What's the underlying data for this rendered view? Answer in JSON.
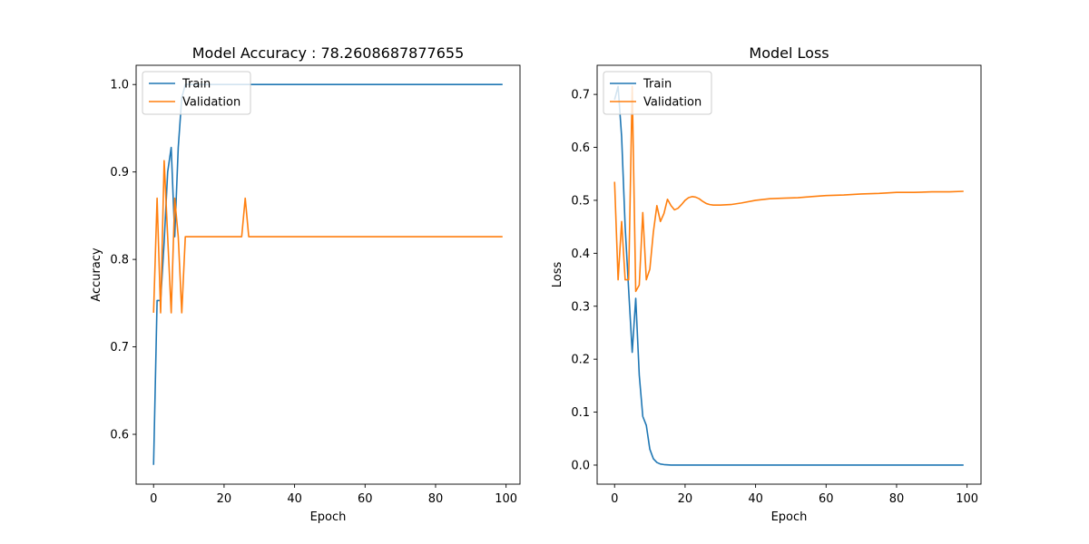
{
  "chart_data": [
    {
      "type": "line",
      "title": "Model Accuracy : 78.2608687877655",
      "xlabel": "Epoch",
      "ylabel": "Accuracy",
      "xlim": [
        -4.95,
        103.95
      ],
      "ylim": [
        0.543,
        1.022
      ],
      "xticks": [
        0,
        20,
        40,
        60,
        80,
        100
      ],
      "yticks": [
        0.6,
        0.7,
        0.8,
        0.9,
        1.0
      ],
      "ytick_labels": [
        "0.6",
        "0.7",
        "0.8",
        "0.9",
        "1.0"
      ],
      "grid": false,
      "legend": "top-left",
      "series": [
        {
          "name": "Train",
          "color": "#1f77b4",
          "points": [
            [
              0,
              0.565
            ],
            [
              1,
              0.753
            ],
            [
              2,
              0.753
            ],
            [
              3,
              0.82
            ],
            [
              4,
              0.9
            ],
            [
              5,
              0.928
            ],
            [
              6,
              0.826
            ],
            [
              7,
              0.928
            ],
            [
              8,
              0.985
            ],
            [
              9,
              1.0
            ],
            [
              99,
              1.0
            ]
          ]
        },
        {
          "name": "Validation",
          "color": "#ff7f0e",
          "points": [
            [
              0,
              0.739
            ],
            [
              1,
              0.87
            ],
            [
              2,
              0.739
            ],
            [
              3,
              0.913
            ],
            [
              4,
              0.826
            ],
            [
              5,
              0.739
            ],
            [
              6,
              0.87
            ],
            [
              7,
              0.826
            ],
            [
              8,
              0.739
            ],
            [
              9,
              0.826
            ],
            [
              25,
              0.826
            ],
            [
              26,
              0.87
            ],
            [
              27,
              0.826
            ],
            [
              99,
              0.826
            ]
          ]
        }
      ]
    },
    {
      "type": "line",
      "title": "Model Loss",
      "xlabel": "Epoch",
      "ylabel": "Loss",
      "xlim": [
        -4.95,
        103.95
      ],
      "ylim": [
        -0.036,
        0.755
      ],
      "xticks": [
        0,
        20,
        40,
        60,
        80,
        100
      ],
      "yticks": [
        0.0,
        0.1,
        0.2,
        0.3,
        0.4,
        0.5,
        0.6,
        0.7
      ],
      "ytick_labels": [
        "0.0",
        "0.1",
        "0.2",
        "0.3",
        "0.4",
        "0.5",
        "0.6",
        "0.7"
      ],
      "grid": false,
      "legend": "top-left",
      "series": [
        {
          "name": "Train",
          "color": "#1f77b4",
          "points": [
            [
              0,
              0.69
            ],
            [
              1,
              0.715
            ],
            [
              2,
              0.62
            ],
            [
              3,
              0.45
            ],
            [
              4,
              0.33
            ],
            [
              5,
              0.213
            ],
            [
              6,
              0.315
            ],
            [
              7,
              0.17
            ],
            [
              8,
              0.092
            ],
            [
              9,
              0.075
            ],
            [
              10,
              0.03
            ],
            [
              11,
              0.012
            ],
            [
              12,
              0.005
            ],
            [
              13,
              0.002
            ],
            [
              14,
              0.001
            ],
            [
              16,
              0.0
            ],
            [
              99,
              0.0
            ]
          ]
        },
        {
          "name": "Validation",
          "color": "#ff7f0e",
          "points": [
            [
              0,
              0.535
            ],
            [
              1,
              0.35
            ],
            [
              2,
              0.46
            ],
            [
              3,
              0.35
            ],
            [
              4,
              0.35
            ],
            [
              5,
              0.715
            ],
            [
              6,
              0.328
            ],
            [
              7,
              0.34
            ],
            [
              8,
              0.477
            ],
            [
              9,
              0.35
            ],
            [
              10,
              0.37
            ],
            [
              11,
              0.44
            ],
            [
              12,
              0.49
            ],
            [
              13,
              0.46
            ],
            [
              14,
              0.475
            ],
            [
              15,
              0.502
            ],
            [
              16,
              0.49
            ],
            [
              17,
              0.482
            ],
            [
              18,
              0.485
            ],
            [
              19,
              0.492
            ],
            [
              20,
              0.5
            ],
            [
              21,
              0.505
            ],
            [
              22,
              0.507
            ],
            [
              23,
              0.506
            ],
            [
              24,
              0.503
            ],
            [
              25,
              0.498
            ],
            [
              26,
              0.494
            ],
            [
              27,
              0.492
            ],
            [
              28,
              0.491
            ],
            [
              30,
              0.491
            ],
            [
              33,
              0.492
            ],
            [
              36,
              0.495
            ],
            [
              40,
              0.5
            ],
            [
              44,
              0.503
            ],
            [
              48,
              0.504
            ],
            [
              52,
              0.505
            ],
            [
              56,
              0.507
            ],
            [
              60,
              0.509
            ],
            [
              65,
              0.51
            ],
            [
              70,
              0.512
            ],
            [
              75,
              0.513
            ],
            [
              80,
              0.515
            ],
            [
              85,
              0.515
            ],
            [
              90,
              0.516
            ],
            [
              95,
              0.516
            ],
            [
              99,
              0.517
            ]
          ]
        }
      ]
    }
  ]
}
